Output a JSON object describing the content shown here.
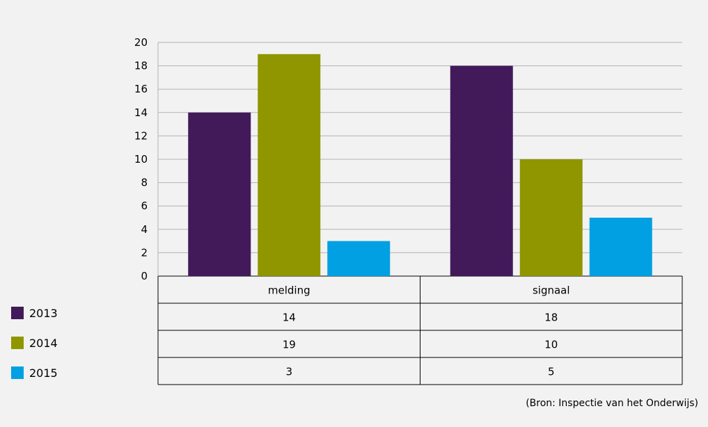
{
  "chart_data": {
    "type": "bar",
    "categories": [
      "melding",
      "signaal"
    ],
    "series": [
      {
        "name": "2013",
        "values": [
          14,
          18
        ],
        "color": "#421a5a"
      },
      {
        "name": "2014",
        "values": [
          19,
          10
        ],
        "color": "#8f9600"
      },
      {
        "name": "2015",
        "values": [
          3,
          5
        ],
        "color": "#00a0e2"
      }
    ],
    "y_ticks": [
      "0",
      "2",
      "4",
      "6",
      "8",
      "10",
      "12",
      "14",
      "16",
      "18",
      "20"
    ],
    "ylim": [
      0,
      20
    ],
    "grid": true,
    "legend_placement": "bottom-left",
    "table_rows": [
      [
        "14",
        "18"
      ],
      [
        "19",
        "10"
      ],
      [
        "3",
        "5"
      ]
    ]
  },
  "source_note": "(Bron: Inspectie van het Onderwijs)"
}
